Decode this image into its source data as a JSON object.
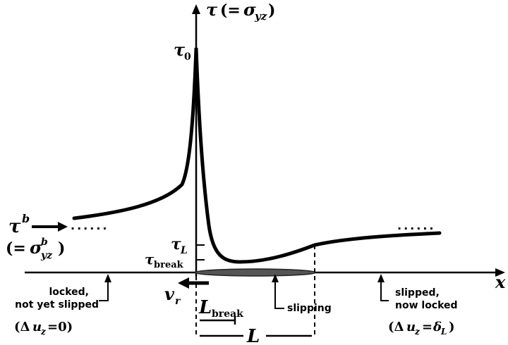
{
  "axes": {
    "y_label_symbol": "τ",
    "y_label_paren_open": "(=",
    "y_label_sigma": "σ",
    "y_label_sub": "yz",
    "y_label_paren_close": ")",
    "x_label": "x"
  },
  "stress_levels": {
    "tau0": {
      "symbol": "τ",
      "sub": "0"
    },
    "tauL": {
      "symbol": "τ",
      "sub": "L"
    },
    "taubreak": {
      "symbol": "τ",
      "sub": "break"
    }
  },
  "background_stress": {
    "symbol": "τ",
    "sup": "b",
    "paren_open": "(=",
    "sigma": "σ",
    "sigma_sup": "b",
    "sigma_sub": "yz",
    "paren_close": ")"
  },
  "rupture_velocity": {
    "symbol": "v",
    "sub": "r"
  },
  "regions": {
    "locked_line1": "locked,",
    "locked_line2": "not yet slipped",
    "locked_cond_open": "(Δ",
    "locked_cond_u": "u",
    "locked_cond_sub": "z",
    "locked_cond_rest": "=0)",
    "slipping": "slipping",
    "slipped_line1": "slipped,",
    "slipped_line2": "now locked",
    "slipped_cond_open": "(Δ",
    "slipped_cond_u": "u",
    "slipped_cond_sub": "z",
    "slipped_cond_eq": "=",
    "slipped_cond_delta": "δ",
    "slipped_cond_delta_sub": "L",
    "slipped_cond_close": ")"
  },
  "lengths": {
    "Lbreak": {
      "symbol": "L",
      "sub": "break"
    },
    "L": {
      "symbol": "L"
    }
  },
  "dots_left": "......",
  "dots_right": "......"
}
